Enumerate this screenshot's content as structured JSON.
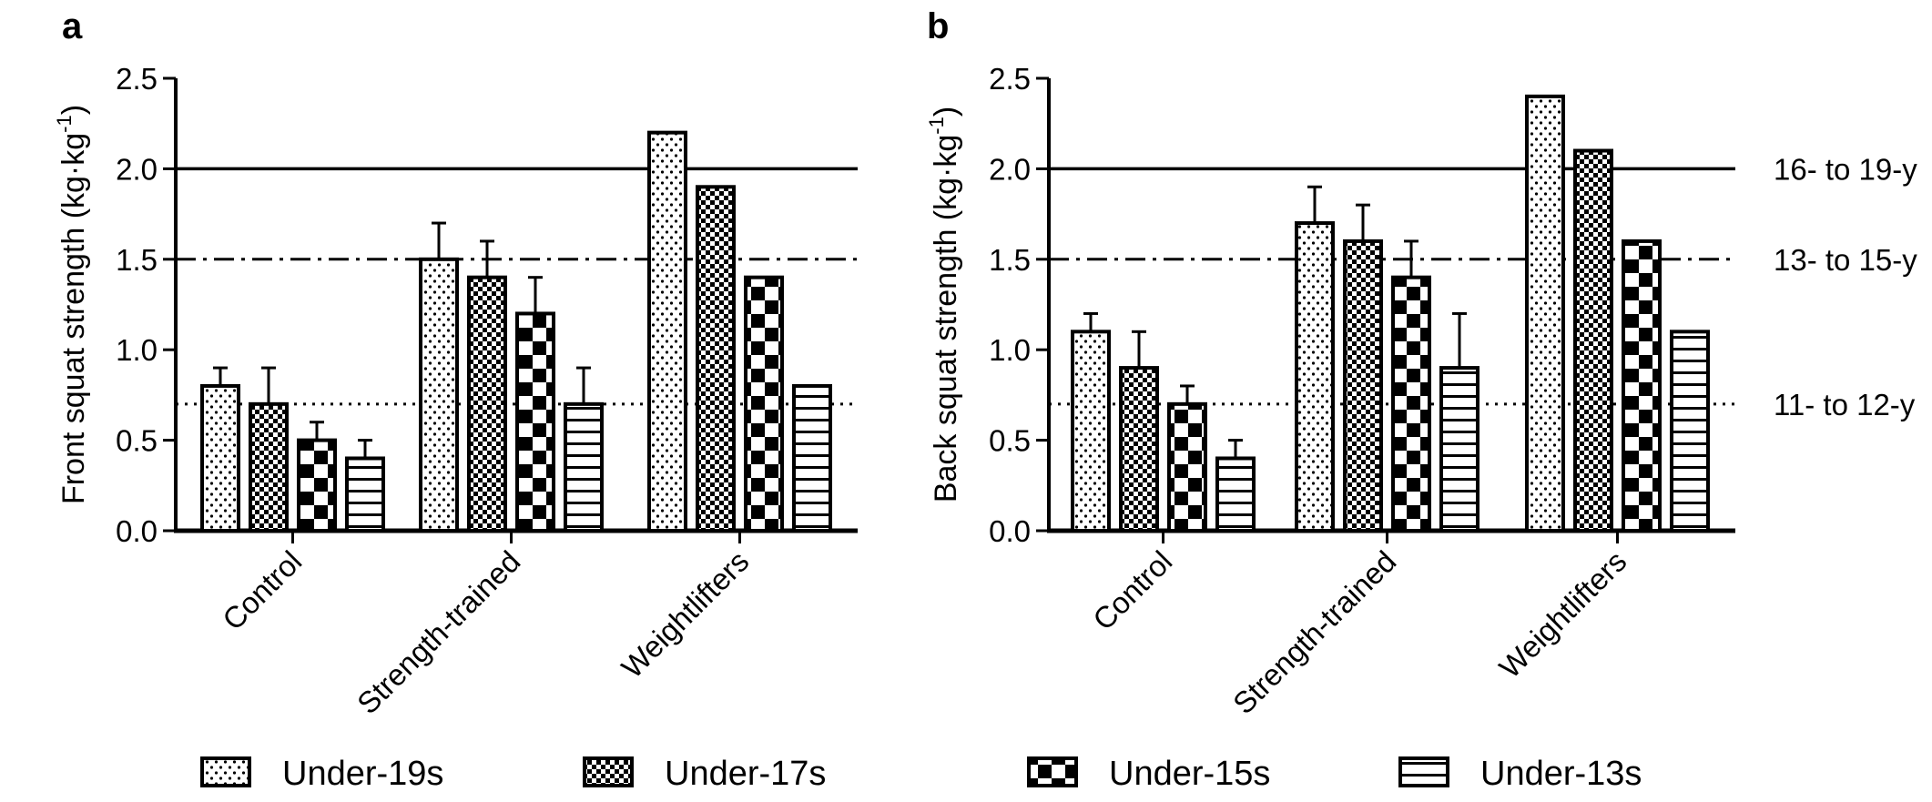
{
  "chart_data": [
    {
      "type": "bar",
      "panel": "a",
      "ylabel": "Front squat strength",
      "ylabel_unit": "(kg·kg",
      "ylabel_exp": "-1",
      "ylabel_close": ")",
      "ylim": [
        0,
        2.5
      ],
      "yticks": [
        "0.0",
        "0.5",
        "1.0",
        "1.5",
        "2.0",
        "2.5"
      ],
      "categories": [
        "Control",
        "Strength-trained",
        "Weightlifters"
      ],
      "series": [
        {
          "name": "Under-19s",
          "values": [
            0.8,
            1.5,
            2.2
          ],
          "errors": [
            0.1,
            0.2,
            0.0
          ]
        },
        {
          "name": "Under-17s",
          "values": [
            0.7,
            1.4,
            1.9
          ],
          "errors": [
            0.2,
            0.2,
            0.0
          ]
        },
        {
          "name": "Under-15s",
          "values": [
            0.5,
            1.2,
            1.4
          ],
          "errors": [
            0.1,
            0.2,
            0.0
          ]
        },
        {
          "name": "Under-13s",
          "values": [
            0.4,
            0.7,
            0.8
          ],
          "errors": [
            0.1,
            0.2,
            0.0
          ]
        }
      ],
      "reference_lines": [
        {
          "value": 2.0,
          "style": "solid",
          "label": ""
        },
        {
          "value": 1.5,
          "style": "dashdot",
          "label": ""
        },
        {
          "value": 0.7,
          "style": "dotted",
          "label": ""
        }
      ]
    },
    {
      "type": "bar",
      "panel": "b",
      "ylabel": "Back squat strength",
      "ylabel_unit": "(kg·kg",
      "ylabel_exp": "-1",
      "ylabel_close": ")",
      "ylim": [
        0,
        2.5
      ],
      "yticks": [
        "0.0",
        "0.5",
        "1.0",
        "1.5",
        "2.0",
        "2.5"
      ],
      "categories": [
        "Control",
        "Strength-trained",
        "Weightlifters"
      ],
      "series": [
        {
          "name": "Under-19s",
          "values": [
            1.1,
            1.7,
            2.4
          ],
          "errors": [
            0.1,
            0.2,
            0.0
          ]
        },
        {
          "name": "Under-17s",
          "values": [
            0.9,
            1.6,
            2.1
          ],
          "errors": [
            0.2,
            0.2,
            0.0
          ]
        },
        {
          "name": "Under-15s",
          "values": [
            0.7,
            1.4,
            1.6
          ],
          "errors": [
            0.1,
            0.2,
            0.0
          ]
        },
        {
          "name": "Under-13s",
          "values": [
            0.4,
            0.9,
            1.1
          ],
          "errors": [
            0.1,
            0.3,
            0.0
          ]
        }
      ],
      "reference_lines": [
        {
          "value": 2.0,
          "style": "solid",
          "label": "16- to 19-y"
        },
        {
          "value": 1.5,
          "style": "dashdot",
          "label": "13- to 15-y"
        },
        {
          "value": 0.7,
          "style": "dotted",
          "label": "11- to 12-y"
        }
      ]
    }
  ],
  "legend": {
    "placement": "bottom",
    "items": [
      "Under-19s",
      "Under-17s",
      "Under-15s",
      "Under-13s"
    ]
  }
}
